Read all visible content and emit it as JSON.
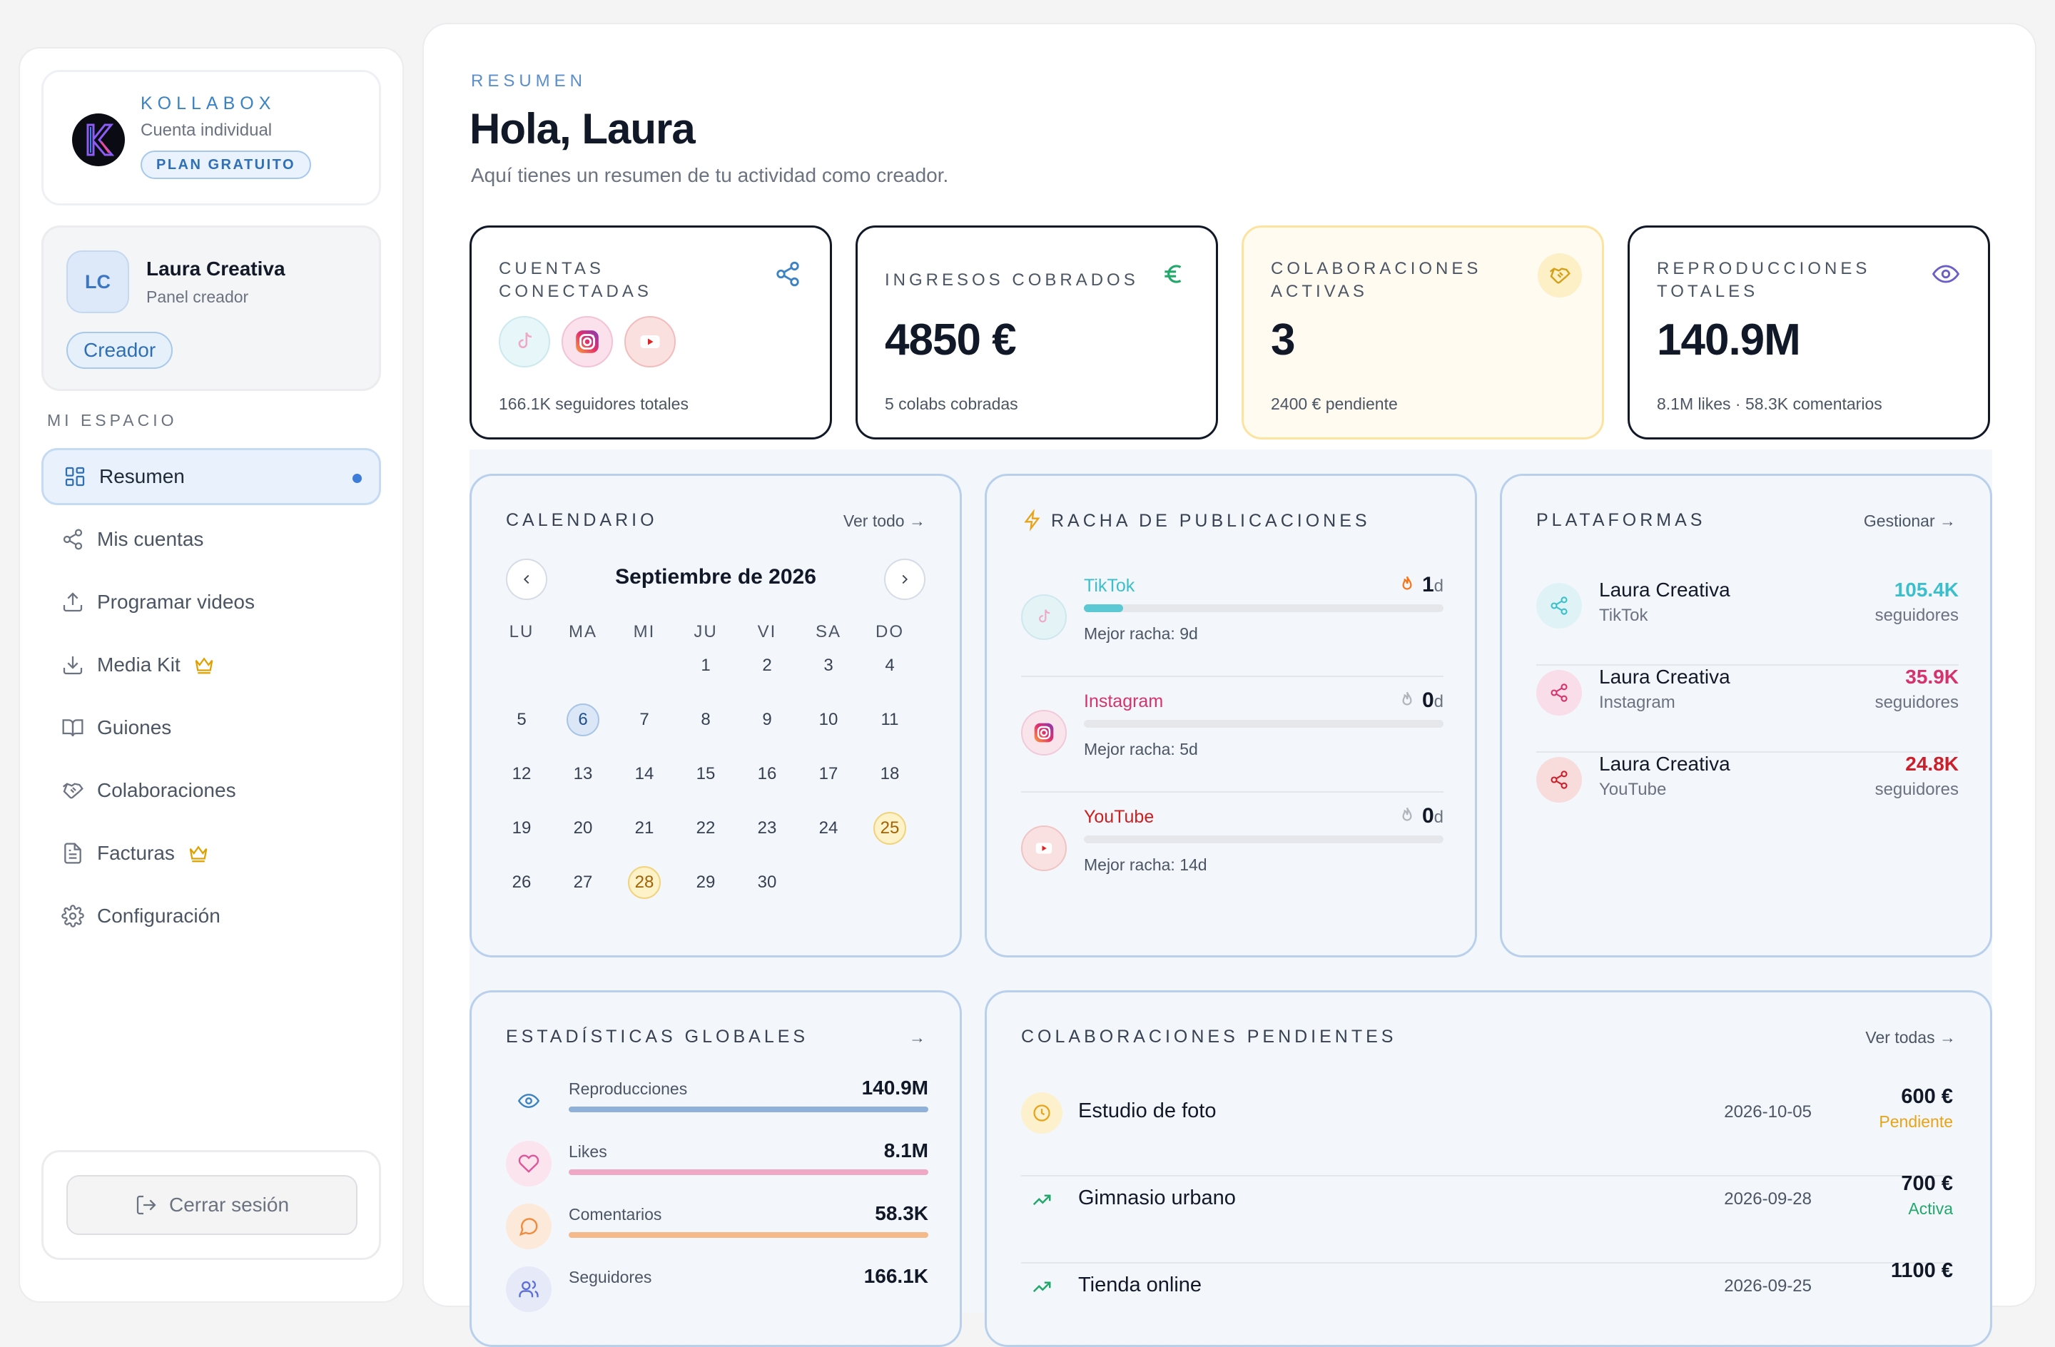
{
  "brand": {
    "name": "KOLLABOX",
    "account_type": "Cuenta individual",
    "plan": "PLAN GRATUITO"
  },
  "user": {
    "initials": "LC",
    "name": "Laura Creativa",
    "role": "Panel creador",
    "badge": "Creador"
  },
  "sidebar": {
    "section": "MI ESPACIO",
    "items": [
      {
        "label": "Resumen",
        "icon": "grid-icon",
        "active": true
      },
      {
        "label": "Mis cuentas",
        "icon": "share-icon"
      },
      {
        "label": "Programar videos",
        "icon": "upload-icon"
      },
      {
        "label": "Media Kit",
        "icon": "download-icon",
        "premium": true
      },
      {
        "label": "Guiones",
        "icon": "book-icon"
      },
      {
        "label": "Colaboraciones",
        "icon": "handshake-icon"
      },
      {
        "label": "Facturas",
        "icon": "document-icon",
        "premium": true
      },
      {
        "label": "Configuración",
        "icon": "gear-icon"
      }
    ],
    "logout": "Cerrar sesión"
  },
  "header": {
    "eyebrow": "RESUMEN",
    "title": "Hola, Laura",
    "subtitle": "Aquí tienes un resumen de tu actividad como creador."
  },
  "stats": [
    {
      "label": "CUENTAS CONECTADAS",
      "foot": "166.1K seguidores totales",
      "icon": "share-icon",
      "color": "#3b82c4"
    },
    {
      "label": "INGRESOS COBRADOS",
      "value": "4850 €",
      "foot": "5 colabs cobradas",
      "icon": "euro-icon",
      "color": "#22a86b"
    },
    {
      "label": "COLABORACIONES ACTIVAS",
      "value": "3",
      "foot": "2400 € pendiente",
      "icon": "handshake-icon",
      "color": "#d4a017"
    },
    {
      "label": "REPRODUCCIONES TOTALES",
      "value": "140.9M",
      "foot": "8.1M likes · 58.3K comentarios",
      "icon": "eye-icon",
      "color": "#6b5fc7"
    }
  ],
  "calendar": {
    "title": "CALENDARIO",
    "link": "Ver todo",
    "month": "Septiembre de 2026",
    "weekdays": [
      "LU",
      "MA",
      "MI",
      "JU",
      "VI",
      "SA",
      "DO"
    ],
    "first_weekday_index": 3,
    "days": 30,
    "today": 6,
    "marked": [
      25,
      28
    ]
  },
  "streak": {
    "title": "RACHA DE PUBLICACIONES",
    "items": [
      {
        "name": "TikTok",
        "count": "1",
        "unit": "d",
        "best": "Mejor racha: 9d",
        "progress": 0.11,
        "color": "#5cc8d4",
        "active": true
      },
      {
        "name": "Instagram",
        "count": "0",
        "unit": "d",
        "best": "Mejor racha: 5d",
        "progress": 0,
        "color": "#d6336c",
        "active": false
      },
      {
        "name": "YouTube",
        "count": "0",
        "unit": "d",
        "best": "Mejor racha: 14d",
        "progress": 0,
        "color": "#cc1f1f",
        "active": false
      }
    ]
  },
  "platforms": {
    "title": "PLATAFORMAS",
    "link": "Gestionar",
    "items": [
      {
        "name": "Laura Creativa",
        "platform": "TikTok",
        "value": "105.4K",
        "unit": "seguidores",
        "color": "#3bbfcc",
        "bg": "#dff3f6"
      },
      {
        "name": "Laura Creativa",
        "platform": "Instagram",
        "value": "35.9K",
        "unit": "seguidores",
        "color": "#d6336c",
        "bg": "#f9dde8"
      },
      {
        "name": "Laura Creativa",
        "platform": "YouTube",
        "value": "24.8K",
        "unit": "seguidores",
        "color": "#cc1f2a",
        "bg": "#f8dcdc"
      }
    ]
  },
  "global": {
    "title": "ESTADÍSTICAS GLOBALES",
    "items": [
      {
        "name": "Reproducciones",
        "value": "140.9M",
        "color": "#8fb1d9",
        "bg": "#e3edf8",
        "icon": "eye-icon"
      },
      {
        "name": "Likes",
        "value": "8.1M",
        "color": "#f0a7c4",
        "bg": "#fbe4ee",
        "icon": "heart-icon"
      },
      {
        "name": "Comentarios",
        "value": "58.3K",
        "color": "#f5b98a",
        "bg": "#fde9da",
        "icon": "comment-icon"
      },
      {
        "name": "Seguidores",
        "value": "166.1K",
        "color": "#a9b8ea",
        "bg": "#e6eaf8",
        "icon": "users-icon"
      }
    ]
  },
  "pending": {
    "title": "COLABORACIONES PENDIENTES",
    "link": "Ver todas",
    "items": [
      {
        "name": "Estudio de foto",
        "date": "2026-10-05",
        "amount": "600 €",
        "status": "Pendiente",
        "status_color": "#e8a317",
        "icon": "clock-icon"
      },
      {
        "name": "Gimnasio urbano",
        "date": "2026-09-28",
        "amount": "700 €",
        "status": "Activa",
        "status_color": "#22a86b",
        "icon": "trend-icon"
      },
      {
        "name": "Tienda online",
        "date": "2026-09-25",
        "amount": "1100 €",
        "status": "",
        "status_color": "#22a86b",
        "icon": "trend-icon"
      }
    ]
  }
}
